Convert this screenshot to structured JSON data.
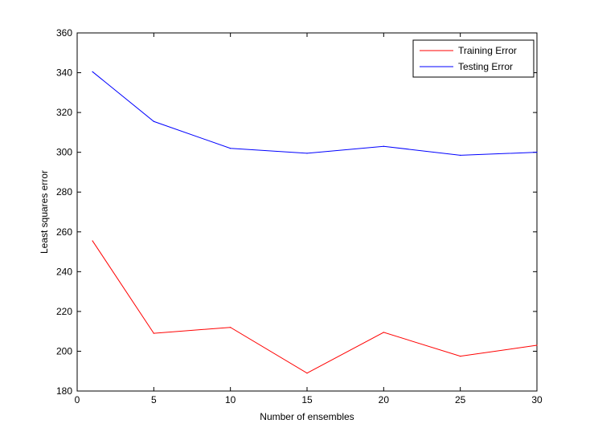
{
  "chart_data": {
    "type": "line",
    "xlabel": "Number of ensembles",
    "ylabel": "Least squares error",
    "xlim": [
      0,
      30
    ],
    "ylim": [
      180,
      360
    ],
    "xticks": [
      0,
      5,
      10,
      15,
      20,
      25,
      30
    ],
    "yticks": [
      180,
      200,
      220,
      240,
      260,
      280,
      300,
      320,
      340,
      360
    ],
    "grid": false,
    "legend_position": "top-right",
    "series": [
      {
        "name": "Training Error",
        "color": "#ff0000",
        "x": [
          1,
          5,
          10,
          15,
          20,
          25,
          30
        ],
        "y": [
          255.5,
          209,
          212,
          189,
          209.5,
          197.5,
          203
        ]
      },
      {
        "name": "Testing Error",
        "color": "#0000ff",
        "x": [
          1,
          5,
          10,
          15,
          20,
          25,
          30
        ],
        "y": [
          340.5,
          315.5,
          302,
          299.5,
          303,
          298.5,
          300
        ]
      }
    ]
  }
}
